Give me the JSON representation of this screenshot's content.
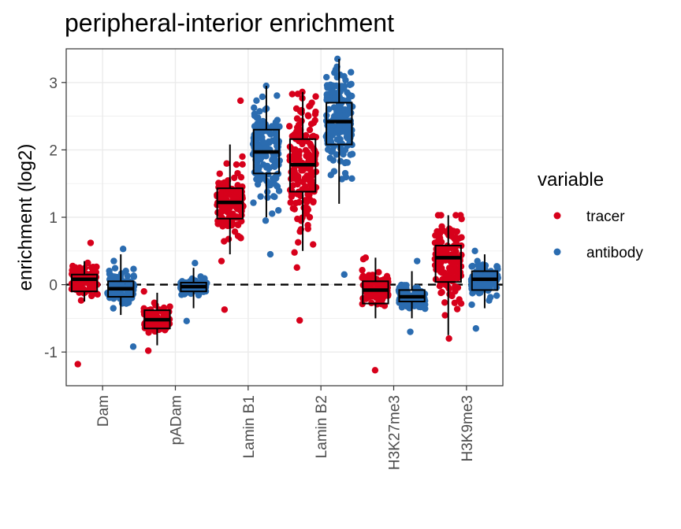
{
  "chart_data": {
    "type": "boxplot-jitter",
    "title": "peripheral-interior enrichment",
    "xlabel": "",
    "ylabel": "enrichment (log2)",
    "ylim": [
      -1.5,
      3.5
    ],
    "yticks": [
      -1,
      0,
      1,
      2,
      3
    ],
    "grid": true,
    "reference_line": {
      "y": 0,
      "style": "dashed"
    },
    "categories": [
      "Dam",
      "pADam",
      "Lamin B1",
      "Lamin B2",
      "H3K27me3",
      "H3K9me3"
    ],
    "legend": {
      "title": "variable",
      "position": "right"
    },
    "series": [
      {
        "name": "tracer",
        "color": "#D7001B",
        "boxes": [
          {
            "category": "Dam",
            "whisker_low": -0.25,
            "q1": -0.1,
            "median": 0.08,
            "q3": 0.15,
            "whisker_high": 0.35,
            "min": -1.18,
            "max": 0.62,
            "spread": 0.12,
            "n": 90
          },
          {
            "category": "pADam",
            "whisker_low": -0.9,
            "q1": -0.65,
            "median": -0.52,
            "q3": -0.38,
            "whisker_high": -0.12,
            "min": -0.98,
            "max": -0.1,
            "spread": 0.1,
            "n": 90
          },
          {
            "category": "Lamin B1",
            "whisker_low": 0.45,
            "q1": 0.98,
            "median": 1.22,
            "q3": 1.43,
            "whisker_high": 2.08,
            "min": -0.37,
            "max": 2.73,
            "spread": 0.25,
            "n": 130
          },
          {
            "category": "Lamin B2",
            "whisker_low": 0.5,
            "q1": 1.38,
            "median": 1.78,
            "q3": 2.16,
            "whisker_high": 2.86,
            "min": -0.53,
            "max": 2.86,
            "spread": 0.45,
            "n": 170
          },
          {
            "category": "H3K27me3",
            "whisker_low": -0.5,
            "q1": -0.28,
            "median": -0.08,
            "q3": 0.05,
            "whisker_high": 0.4,
            "min": -1.27,
            "max": 0.4,
            "spread": 0.14,
            "n": 90
          },
          {
            "category": "H3K9me3",
            "whisker_low": -0.75,
            "q1": 0.04,
            "median": 0.4,
            "q3": 0.58,
            "whisker_high": 1.03,
            "min": -0.8,
            "max": 1.03,
            "spread": 0.3,
            "n": 140
          }
        ]
      },
      {
        "name": "antibody",
        "color": "#2B6CB0",
        "boxes": [
          {
            "category": "Dam",
            "whisker_low": -0.45,
            "q1": -0.18,
            "median": -0.06,
            "q3": 0.05,
            "whisker_high": 0.45,
            "min": -0.92,
            "max": 0.53,
            "spread": 0.13,
            "n": 90
          },
          {
            "category": "pADam",
            "whisker_low": -0.35,
            "q1": -0.1,
            "median": -0.03,
            "q3": 0.03,
            "whisker_high": 0.25,
            "min": -0.54,
            "max": 0.32,
            "spread": 0.07,
            "n": 90
          },
          {
            "category": "Lamin B1",
            "whisker_low": 1.0,
            "q1": 1.65,
            "median": 1.97,
            "q3": 2.3,
            "whisker_high": 2.95,
            "min": 0.45,
            "max": 2.95,
            "spread": 0.35,
            "n": 170
          },
          {
            "category": "Lamin B2",
            "whisker_low": 1.2,
            "q1": 2.08,
            "median": 2.42,
            "q3": 2.7,
            "whisker_high": 3.35,
            "min": 0.15,
            "max": 3.35,
            "spread": 0.38,
            "n": 170
          },
          {
            "category": "H3K27me3",
            "whisker_low": -0.5,
            "q1": -0.25,
            "median": -0.18,
            "q3": -0.08,
            "whisker_high": 0.2,
            "min": -0.7,
            "max": 0.35,
            "spread": 0.08,
            "n": 90
          },
          {
            "category": "H3K9me3",
            "whisker_low": -0.35,
            "q1": -0.08,
            "median": 0.08,
            "q3": 0.2,
            "whisker_high": 0.45,
            "min": -0.65,
            "max": 0.5,
            "spread": 0.12,
            "n": 110
          }
        ]
      }
    ]
  }
}
